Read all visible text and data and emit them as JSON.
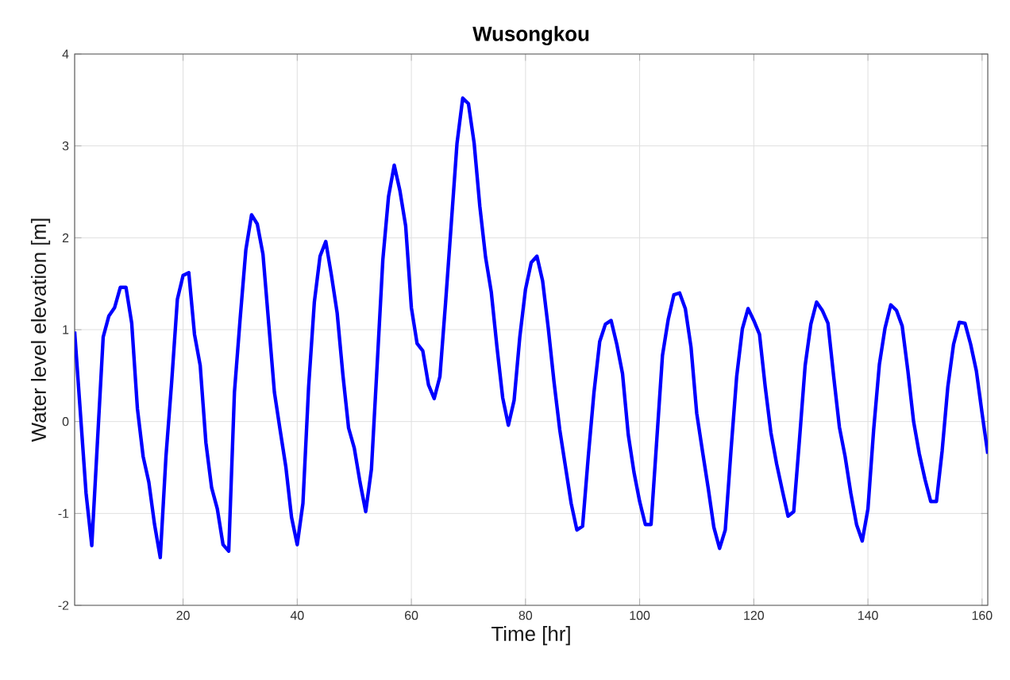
{
  "chart_data": {
    "type": "line",
    "title": "Wusongkou",
    "xlabel": "Time [hr]",
    "ylabel": "Water level elevation [m]",
    "x": [
      1,
      3,
      4,
      6,
      7,
      8,
      9,
      10,
      11,
      12,
      13,
      14,
      15,
      16,
      17,
      18,
      19,
      20,
      21,
      22,
      23,
      24,
      25,
      26,
      27,
      28,
      29,
      30,
      31,
      32,
      33,
      34,
      35,
      36,
      37,
      38,
      39,
      40,
      41,
      42,
      43,
      44,
      45,
      46,
      47,
      48,
      49,
      50,
      51,
      52,
      53,
      54,
      55,
      56,
      57,
      58,
      59,
      60,
      61,
      62,
      63,
      64,
      65,
      66,
      67,
      68,
      69,
      70,
      71,
      72,
      73,
      74,
      75,
      76,
      77,
      78,
      79,
      80,
      81,
      82,
      83,
      84,
      85,
      86,
      87,
      88,
      89,
      90,
      91,
      92,
      93,
      94,
      95,
      96,
      97,
      98,
      99,
      100,
      101,
      102,
      103,
      104,
      105,
      106,
      107,
      108,
      109,
      110,
      111,
      112,
      113,
      114,
      115,
      116,
      117,
      118,
      119,
      120,
      121,
      122,
      123,
      124,
      125,
      126,
      127,
      128,
      129,
      130,
      131,
      132,
      133,
      134,
      135,
      136,
      137,
      138,
      139,
      140,
      141,
      142,
      143,
      144,
      145,
      146,
      147,
      148,
      149,
      150,
      151,
      152,
      153,
      154,
      155,
      156,
      157,
      158,
      159,
      160,
      161
    ],
    "series": [
      {
        "color": "#0000ff",
        "values": [
          0.98,
          -0.78,
          -1.35,
          0.92,
          1.15,
          1.24,
          1.46,
          1.46,
          1.07,
          0.14,
          -0.38,
          -0.66,
          -1.12,
          -1.48,
          -0.38,
          0.43,
          1.33,
          1.59,
          1.62,
          0.95,
          0.61,
          -0.23,
          -0.72,
          -0.95,
          -1.34,
          -1.41,
          0.32,
          1.12,
          1.87,
          2.25,
          2.15,
          1.82,
          1.07,
          0.32,
          -0.09,
          -0.49,
          -1.04,
          -1.34,
          -0.89,
          0.38,
          1.3,
          1.8,
          1.96,
          1.59,
          1.18,
          0.51,
          -0.07,
          -0.29,
          -0.66,
          -0.98,
          -0.52,
          0.61,
          1.76,
          2.45,
          2.79,
          2.51,
          2.13,
          1.24,
          0.85,
          0.77,
          0.4,
          0.25,
          0.49,
          1.3,
          2.16,
          3.03,
          3.52,
          3.46,
          3.03,
          2.34,
          1.79,
          1.41,
          0.81,
          0.26,
          -0.04,
          0.23,
          0.92,
          1.44,
          1.73,
          1.8,
          1.53,
          1.01,
          0.43,
          -0.09,
          -0.49,
          -0.89,
          -1.18,
          -1.14,
          -0.38,
          0.32,
          0.87,
          1.06,
          1.1,
          0.84,
          0.52,
          -0.14,
          -0.55,
          -0.87,
          -1.12,
          -1.12,
          -0.2,
          0.72,
          1.11,
          1.38,
          1.4,
          1.23,
          0.81,
          0.09,
          -0.32,
          -0.72,
          -1.15,
          -1.38,
          -1.18,
          -0.32,
          0.49,
          1.01,
          1.23,
          1.1,
          0.95,
          0.38,
          -0.12,
          -0.46,
          -0.75,
          -1.03,
          -0.98,
          -0.2,
          0.61,
          1.06,
          1.3,
          1.21,
          1.07,
          0.49,
          -0.06,
          -0.38,
          -0.78,
          -1.12,
          -1.3,
          -0.95,
          -0.09,
          0.62,
          1.02,
          1.27,
          1.21,
          1.04,
          0.55,
          0.0,
          -0.35,
          -0.63,
          -0.87,
          -0.87,
          -0.32,
          0.38,
          0.84,
          1.08,
          1.07,
          0.84,
          0.55,
          0.09,
          -0.35
        ]
      }
    ],
    "xlim": [
      1,
      161
    ],
    "ylim": [
      -2,
      4
    ],
    "xticks": [
      20,
      40,
      60,
      80,
      100,
      120,
      140,
      160
    ],
    "yticks": [
      -2,
      -1,
      0,
      1,
      2,
      3,
      4
    ],
    "grid": true
  }
}
